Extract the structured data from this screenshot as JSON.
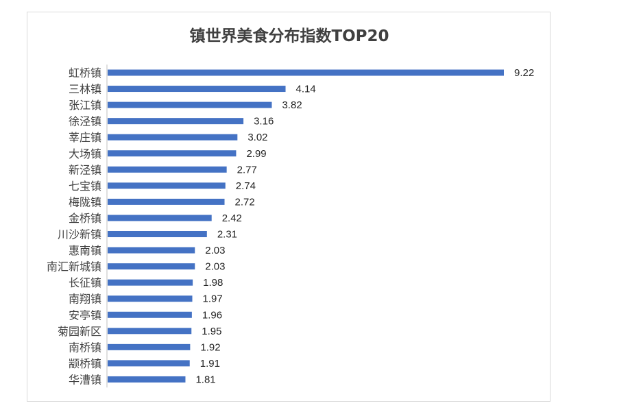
{
  "chart_data": {
    "type": "bar",
    "orientation": "horizontal",
    "title": "镇世界美食分布指数TOP20",
    "categories": [
      "虹桥镇",
      "三林镇",
      "张江镇",
      "徐泾镇",
      "莘庄镇",
      "大场镇",
      "新泾镇",
      "七宝镇",
      "梅陇镇",
      "金桥镇",
      "川沙新镇",
      "惠南镇",
      "南汇新城镇",
      "长征镇",
      "南翔镇",
      "安亭镇",
      "菊园新区",
      "南桥镇",
      "颛桥镇",
      "华漕镇"
    ],
    "values": [
      9.22,
      4.14,
      3.82,
      3.16,
      3.02,
      2.99,
      2.77,
      2.74,
      2.72,
      2.42,
      2.31,
      2.03,
      2.03,
      1.98,
      1.97,
      1.96,
      1.95,
      1.92,
      1.91,
      1.81
    ],
    "value_labels": [
      "9.22",
      "4.14",
      "3.82",
      "3.16",
      "3.02",
      "2.99",
      "2.77",
      "2.74",
      "2.72",
      "2.42",
      "2.31",
      "2.03",
      "2.03",
      "1.98",
      "1.97",
      "1.96",
      "1.95",
      "1.92",
      "1.91",
      "1.81"
    ],
    "xlim": [
      0,
      9.22
    ],
    "grid": false,
    "legend": "none",
    "bar_color": "#4472c4",
    "axis_color": "#bfbfbf"
  }
}
